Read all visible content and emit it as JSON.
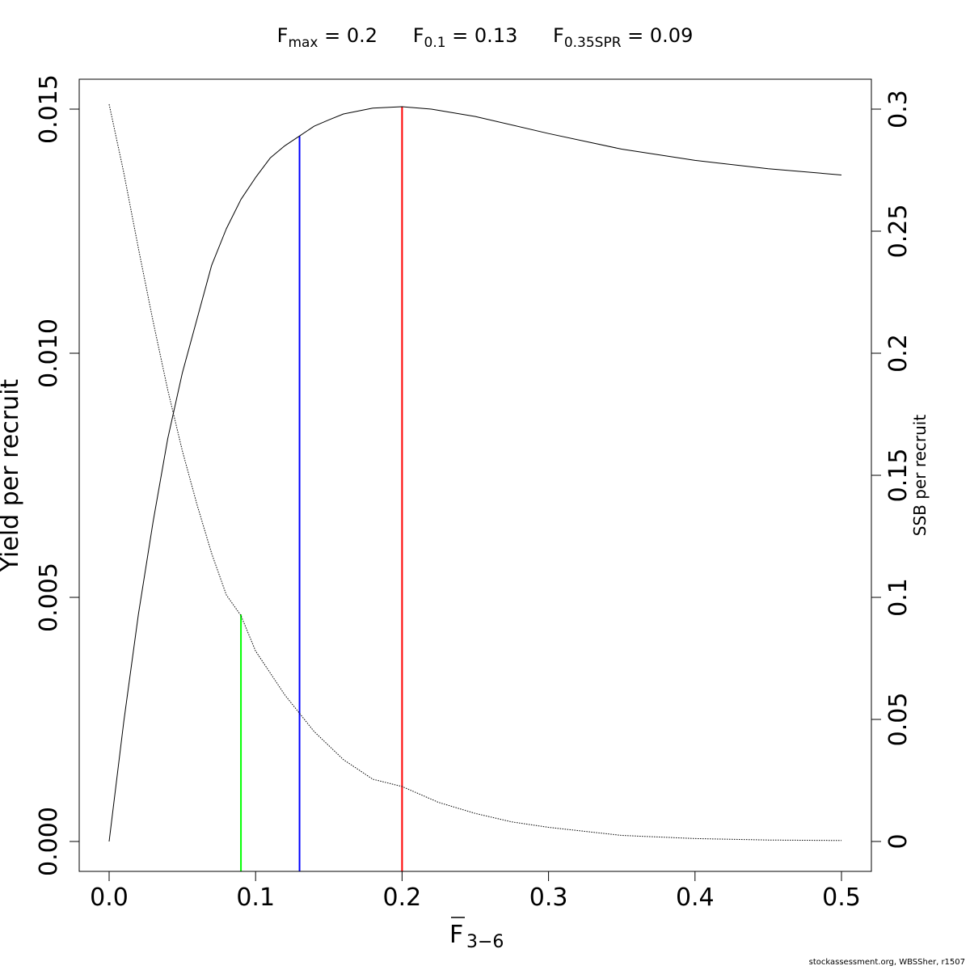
{
  "header": {
    "reference_points": [
      {
        "symbol": "F",
        "subscript": "max",
        "value_text": " = 0.2"
      },
      {
        "symbol": "F",
        "subscript": "0.1",
        "value_text": " = 0.13"
      },
      {
        "symbol": "F",
        "subscript": "0.35SPR",
        "value_text": " = 0.09"
      }
    ]
  },
  "footer": {
    "credit": "stockassessment.org, WBSSher, r1507"
  },
  "chart_data": {
    "type": "line",
    "title": "",
    "xlabel_main": "F",
    "xlabel_sub": "3−6",
    "ylabel_left": "Yield per recruit",
    "ylabel_right": "SSB per recruit",
    "xlim": [
      0,
      0.5
    ],
    "ylim_left": [
      0,
      0.015
    ],
    "ylim_right": [
      0,
      0.3
    ],
    "x_ticks": [
      "0.0",
      "0.1",
      "0.2",
      "0.3",
      "0.4",
      "0.5"
    ],
    "y_left_ticks": [
      "0.000",
      "0.005",
      "0.010",
      "0.015"
    ],
    "y_right_ticks": [
      "0",
      "0.05",
      "0.1",
      "0.15",
      "0.2",
      "0.25",
      "0.3"
    ],
    "grid": false,
    "series": [
      {
        "axis": "left",
        "style": "solid",
        "color": "#000000",
        "x": [
          0,
          0.01,
          0.02,
          0.03,
          0.04,
          0.05,
          0.06,
          0.07,
          0.08,
          0.09,
          0.1,
          0.11,
          0.12,
          0.13,
          0.14,
          0.15,
          0.16,
          0.18,
          0.2,
          0.22,
          0.25,
          0.3,
          0.35,
          0.4,
          0.45,
          0.5
        ],
        "y": [
          0,
          0.00245,
          0.00465,
          0.00655,
          0.00825,
          0.0096,
          0.0107,
          0.0118,
          0.01255,
          0.01315,
          0.0136,
          0.014,
          0.01425,
          0.01445,
          0.01465,
          0.01478,
          0.0149,
          0.01502,
          0.01505,
          0.015,
          0.01485,
          0.0145,
          0.01418,
          0.01395,
          0.01378,
          0.01365
        ]
      },
      {
        "axis": "right",
        "style": "dotted",
        "color": "#000000",
        "x": [
          0,
          0.01,
          0.02,
          0.03,
          0.04,
          0.05,
          0.06,
          0.07,
          0.08,
          0.09,
          0.1,
          0.12,
          0.14,
          0.16,
          0.18,
          0.2,
          0.225,
          0.25,
          0.275,
          0.3,
          0.35,
          0.4,
          0.45,
          0.5
        ],
        "y": [
          0.302,
          0.274,
          0.243,
          0.213,
          0.185,
          0.16,
          0.138,
          0.118,
          0.101,
          0.0925,
          0.078,
          0.06,
          0.045,
          0.0335,
          0.0255,
          0.0225,
          0.016,
          0.0115,
          0.008,
          0.0058,
          0.0025,
          0.0012,
          0.0006,
          0.0004
        ]
      }
    ],
    "reference_lines": [
      {
        "name": "F0.35SPR",
        "x": 0.09,
        "y_top_left": 0.00465,
        "color": "#00ff00"
      },
      {
        "name": "F0.1",
        "x": 0.13,
        "y_top_left": 0.01445,
        "color": "#0000ff"
      },
      {
        "name": "Fmax",
        "x": 0.2,
        "y_top_left": 0.01505,
        "color": "#ff0000"
      }
    ]
  }
}
